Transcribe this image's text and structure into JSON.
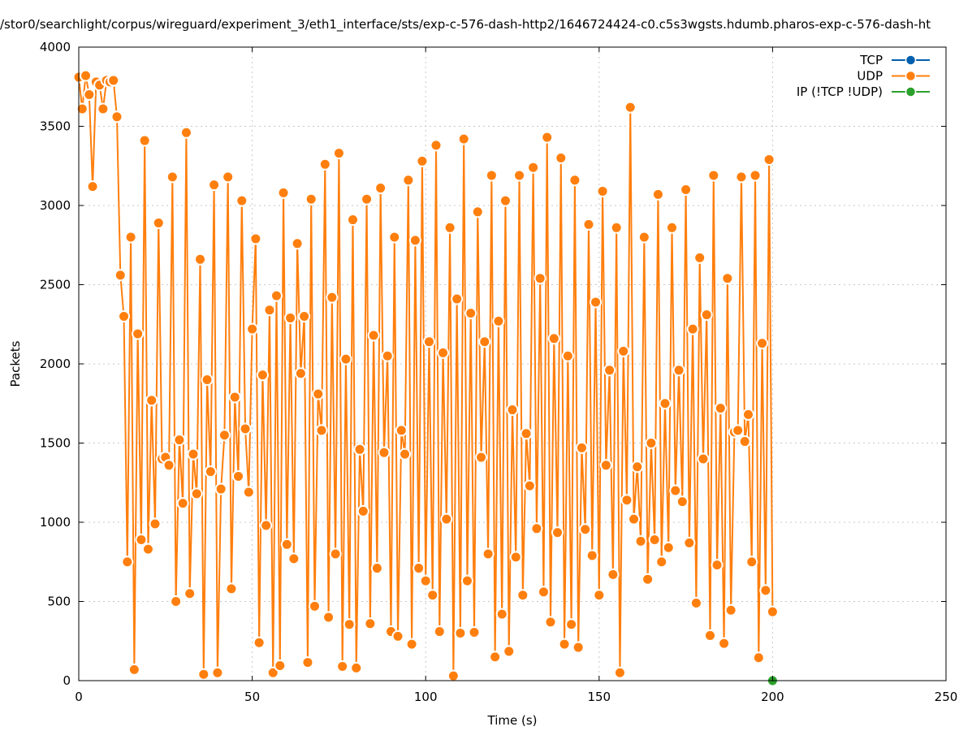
{
  "chart_data": {
    "type": "line",
    "title": "/stor0/searchlight/corpus/wireguard/experiment_3/eth1_interface/sts/exp-c-576-dash-http2/1646724424-c0.c5s3wgsts.hdumb.pharos-exp-c-576-dash-ht",
    "xlabel": "Time (s)",
    "ylabel": "Packets",
    "xlim": [
      0,
      250
    ],
    "ylim": [
      0,
      4000
    ],
    "xticks": [
      0,
      50,
      100,
      150,
      200,
      250
    ],
    "yticks": [
      0,
      500,
      1000,
      1500,
      2000,
      2500,
      3000,
      3500,
      4000
    ],
    "grid": true,
    "legend_position": "top-right",
    "series": [
      {
        "name": "TCP",
        "color": "#0060ad",
        "x": [],
        "y": []
      },
      {
        "name": "UDP",
        "color": "#ff7f0e",
        "x": [
          0,
          1,
          2,
          3,
          4,
          5,
          6,
          7,
          8,
          9,
          10,
          11,
          12,
          13,
          14,
          15,
          16,
          17,
          18,
          19,
          20,
          21,
          22,
          23,
          24,
          25,
          26,
          27,
          28,
          29,
          30,
          31,
          32,
          33,
          34,
          35,
          36,
          37,
          38,
          39,
          40,
          41,
          42,
          43,
          44,
          45,
          46,
          47,
          48,
          49,
          50,
          51,
          52,
          53,
          54,
          55,
          56,
          57,
          58,
          59,
          60,
          61,
          62,
          63,
          64,
          65,
          66,
          67,
          68,
          69,
          70,
          71,
          72,
          73,
          74,
          75,
          76,
          77,
          78,
          79,
          80,
          81,
          82,
          83,
          84,
          85,
          86,
          87,
          88,
          89,
          90,
          91,
          92,
          93,
          94,
          95,
          96,
          97,
          98,
          99,
          100,
          101,
          102,
          103,
          104,
          105,
          106,
          107,
          108,
          109,
          110,
          111,
          112,
          113,
          114,
          115,
          116,
          117,
          118,
          119,
          120,
          121,
          122,
          123,
          124,
          125,
          126,
          127,
          128,
          129,
          130,
          131,
          132,
          133,
          134,
          135,
          136,
          137,
          138,
          139,
          140,
          141,
          142,
          143,
          144,
          145,
          146,
          147,
          148,
          149,
          150,
          151,
          152,
          153,
          154,
          155,
          156,
          157,
          158,
          159,
          160,
          161,
          162,
          163,
          164,
          165,
          166,
          167,
          168,
          169,
          170,
          171,
          172,
          173,
          174,
          175,
          176,
          177,
          178,
          179,
          180,
          181,
          182,
          183,
          184,
          185,
          186,
          187,
          188,
          189,
          190,
          191,
          192,
          193,
          194,
          195,
          196,
          197,
          198,
          199,
          200
        ],
        "y": [
          3810,
          3610,
          3820,
          3700,
          3120,
          3780,
          3760,
          3610,
          3790,
          3780,
          3790,
          3560,
          2560,
          2300,
          750,
          2800,
          70,
          2190,
          890,
          3410,
          830,
          1770,
          990,
          2890,
          1400,
          1410,
          1360,
          3180,
          500,
          1520,
          1120,
          3460,
          550,
          1430,
          1180,
          2660,
          40,
          1900,
          1320,
          3130,
          50,
          1210,
          1550,
          3180,
          580,
          1790,
          1290,
          3030,
          1590,
          1190,
          2220,
          2790,
          240,
          1930,
          980,
          2340,
          50,
          2430,
          95,
          3080,
          860,
          2290,
          770,
          2760,
          1940,
          2300,
          115,
          3040,
          470,
          1810,
          1580,
          3260,
          400,
          2420,
          800,
          3330,
          90,
          2030,
          355,
          2910,
          80,
          1460,
          1070,
          3040,
          360,
          2180,
          710,
          3110,
          1440,
          2050,
          310,
          2800,
          280,
          1580,
          1430,
          3160,
          230,
          2780,
          710,
          3280,
          630,
          2140,
          540,
          3380,
          310,
          2070,
          1020,
          2860,
          30,
          2410,
          300,
          3420,
          630,
          2320,
          305,
          2960,
          1410,
          2140,
          800,
          3190,
          150,
          2270,
          420,
          3030,
          185,
          1710,
          780,
          3190,
          540,
          1560,
          1230,
          3240,
          960,
          2540,
          560,
          3430,
          370,
          2160,
          935,
          3300,
          230,
          2050,
          355,
          3160,
          210,
          1470,
          955,
          2880,
          790,
          2390,
          540,
          3090,
          1360,
          1960,
          670,
          2860,
          50,
          2080,
          1140,
          3620,
          1020,
          1350,
          880,
          2800,
          640,
          1500,
          890,
          3070,
          750,
          1750,
          840,
          2860,
          1200,
          1960,
          1130,
          3100,
          870,
          2220,
          490,
          2670,
          1400,
          2310,
          285,
          3190,
          730,
          1720,
          235,
          2540,
          445,
          1570,
          1580,
          3180,
          1510,
          1680,
          750,
          3190,
          145,
          2130,
          570,
          3290,
          435
        ]
      },
      {
        "name": "IP (!TCP  !UDP)",
        "color": "#2ca02c",
        "x": [
          200
        ],
        "y": [
          0
        ]
      }
    ]
  }
}
